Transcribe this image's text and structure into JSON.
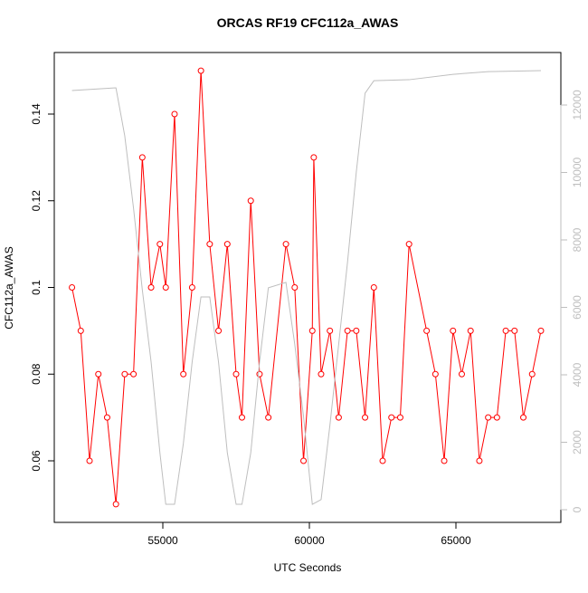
{
  "chart_data": {
    "type": "line",
    "title": "ORCAS RF19 CFC112a_AWAS",
    "xlabel": "UTC Seconds",
    "ylabel": "CFC112a_AWAS",
    "x": [
      51900,
      52200,
      52500,
      52800,
      53100,
      53400,
      53700,
      54000,
      54300,
      54600,
      54900,
      55100,
      55400,
      55700,
      56000,
      56300,
      56600,
      56900,
      57200,
      57500,
      57700,
      58000,
      58300,
      58600,
      59200,
      59500,
      59800,
      60100,
      60150,
      60400,
      60700,
      61000,
      61300,
      61600,
      61900,
      62200,
      62500,
      62800,
      63100,
      63400,
      64000,
      64300,
      64600,
      64900,
      65200,
      65500,
      65800,
      66100,
      66400,
      66700,
      67000,
      67300,
      67600,
      67900
    ],
    "series": [
      {
        "color": "#ff0000",
        "values": [
          0.1,
          0.09,
          0.06,
          0.08,
          0.07,
          0.05,
          0.08,
          0.08,
          0.13,
          0.1,
          0.11,
          0.1,
          0.14,
          0.08,
          0.1,
          0.15,
          0.11,
          0.09,
          0.11,
          0.08,
          0.07,
          0.12,
          0.08,
          0.07,
          0.11,
          0.1,
          0.06,
          0.09,
          0.13,
          0.08,
          0.09,
          0.07,
          0.09,
          0.09,
          0.07,
          0.1,
          0.06,
          0.07,
          0.07,
          0.11,
          0.09,
          0.08,
          0.06,
          0.09,
          0.08,
          0.09,
          0.06,
          0.07,
          0.07,
          0.09,
          0.09,
          0.07,
          0.08,
          0.09
        ]
      },
      {
        "color": "#bebebe",
        "axis": "y2",
        "x": [
          51900,
          53400,
          53700,
          54000,
          54300,
          54600,
          54900,
          55100,
          55400,
          55700,
          56000,
          56300,
          56600,
          56900,
          57200,
          57500,
          57700,
          58000,
          58300,
          58600,
          59200,
          59500,
          59800,
          60100,
          60400,
          60700,
          61000,
          61300,
          61600,
          61900,
          62200,
          63400,
          64900,
          66100,
          67900
        ],
        "values": [
          12430,
          12510,
          11090,
          8940,
          6520,
          4380,
          1690,
          160,
          160,
          1960,
          4380,
          6310,
          6310,
          4380,
          1690,
          160,
          160,
          1690,
          4380,
          6580,
          6740,
          4910,
          2770,
          160,
          300,
          2500,
          4910,
          7330,
          10010,
          12350,
          12720,
          12750,
          12910,
          12990,
          13020
        ]
      }
    ],
    "xlim": [
      51296,
      68580
    ],
    "xticks": [
      55000,
      60000,
      65000
    ],
    "ylim": [
      0.0458,
      0.1542
    ],
    "yticks": [
      0.06,
      0.08,
      0.1,
      0.12,
      0.14
    ],
    "y2lim": [
      -376,
      13557
    ],
    "y2ticks": [
      0,
      2000,
      4000,
      6000,
      8000,
      10000,
      12000
    ],
    "y2color": "#bebebe"
  }
}
